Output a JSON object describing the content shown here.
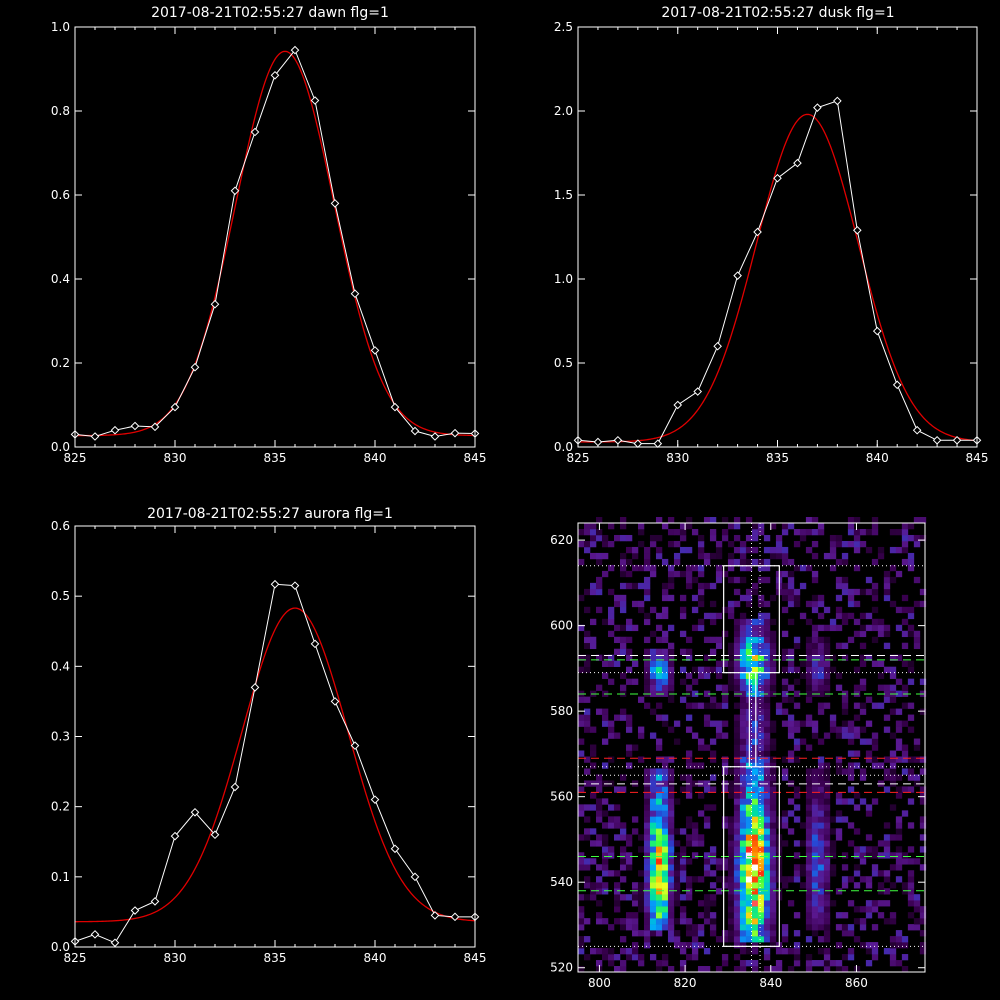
{
  "chart_data": [
    {
      "id": "dawn",
      "type": "line",
      "title": "2017-08-21T02:55:27 dawn flg=1",
      "xlim": [
        825,
        845
      ],
      "ylim": [
        0,
        1.0
      ],
      "xticks": [
        825,
        830,
        835,
        840,
        845
      ],
      "yticks": [
        0.0,
        0.2,
        0.4,
        0.6,
        0.8,
        1.0
      ],
      "xtick_labels": [
        "825",
        "830",
        "835",
        "840",
        "845"
      ],
      "ytick_labels": [
        "0.0",
        "0.2",
        "0.4",
        "0.6",
        "0.8",
        "1.0"
      ],
      "series": [
        {
          "kind": "measured",
          "color": "#ffffff",
          "marker": "diamond",
          "x": [
            825,
            826,
            827,
            828,
            829,
            830,
            831,
            832,
            833,
            834,
            835,
            836,
            837,
            838,
            839,
            840,
            841,
            842,
            843,
            844,
            845
          ],
          "y": [
            0.03,
            0.025,
            0.04,
            0.05,
            0.048,
            0.095,
            0.19,
            0.34,
            0.61,
            0.75,
            0.885,
            0.945,
            0.825,
            0.58,
            0.365,
            0.23,
            0.095,
            0.038,
            0.025,
            0.033,
            0.032
          ]
        },
        {
          "kind": "fit",
          "color": "#e00000",
          "gaussian": {
            "amp": 0.915,
            "center": 835.5,
            "sigma": 2.45,
            "offset": 0.027
          }
        }
      ]
    },
    {
      "id": "dusk",
      "type": "line",
      "title": "2017-08-21T02:55:27 dusk flg=1",
      "xlim": [
        825,
        845
      ],
      "ylim": [
        0,
        2.5
      ],
      "xticks": [
        825,
        830,
        835,
        840,
        845
      ],
      "yticks": [
        0.0,
        0.5,
        1.0,
        1.5,
        2.0,
        2.5
      ],
      "xtick_labels": [
        "825",
        "830",
        "835",
        "840",
        "845"
      ],
      "ytick_labels": [
        "0.0",
        "0.5",
        "1.0",
        "1.5",
        "2.0",
        "2.5"
      ],
      "series": [
        {
          "kind": "measured",
          "color": "#ffffff",
          "marker": "diamond",
          "x": [
            825,
            826,
            827,
            828,
            829,
            830,
            831,
            832,
            833,
            834,
            835,
            836,
            837,
            838,
            839,
            840,
            841,
            842,
            843,
            844,
            845
          ],
          "y": [
            0.04,
            0.03,
            0.04,
            0.02,
            0.02,
            0.25,
            0.33,
            0.6,
            1.02,
            1.28,
            1.6,
            1.69,
            2.02,
            2.06,
            1.29,
            0.69,
            0.37,
            0.1,
            0.04,
            0.04,
            0.04
          ]
        },
        {
          "kind": "fit",
          "color": "#e00000",
          "gaussian": {
            "amp": 1.95,
            "center": 836.5,
            "sigma": 2.55,
            "offset": 0.03
          }
        }
      ]
    },
    {
      "id": "aurora",
      "type": "line",
      "title": "2017-08-21T02:55:27 aurora flg=1",
      "xlim": [
        825,
        845
      ],
      "ylim": [
        0,
        0.6
      ],
      "xticks": [
        825,
        830,
        835,
        840,
        845
      ],
      "yticks": [
        0.0,
        0.1,
        0.2,
        0.3,
        0.4,
        0.5,
        0.6
      ],
      "xtick_labels": [
        "825",
        "830",
        "835",
        "840",
        "845"
      ],
      "ytick_labels": [
        "0.0",
        "0.1",
        "0.2",
        "0.3",
        "0.4",
        "0.5",
        "0.6"
      ],
      "series": [
        {
          "kind": "measured",
          "color": "#ffffff",
          "marker": "diamond",
          "x": [
            825,
            826,
            827,
            828,
            829,
            830,
            831,
            832,
            833,
            834,
            835,
            836,
            837,
            838,
            839,
            840,
            841,
            842,
            843,
            844,
            845
          ],
          "y": [
            0.008,
            0.018,
            0.006,
            0.052,
            0.065,
            0.158,
            0.192,
            0.16,
            0.228,
            0.37,
            0.517,
            0.515,
            0.432,
            0.35,
            0.287,
            0.21,
            0.14,
            0.1,
            0.045,
            0.043,
            0.043
          ]
        },
        {
          "kind": "fit",
          "color": "#e00000",
          "gaussian": {
            "amp": 0.447,
            "center": 836.0,
            "sigma": 2.65,
            "offset": 0.036
          }
        }
      ]
    },
    {
      "id": "spectrogram",
      "type": "heatmap",
      "title": "",
      "xlim": [
        795,
        876
      ],
      "ylim": [
        519,
        624
      ],
      "xticks": [
        800,
        820,
        840,
        860
      ],
      "yticks": [
        520,
        540,
        560,
        580,
        600,
        620
      ],
      "xtick_labels": [
        "800",
        "820",
        "840",
        "860"
      ],
      "ytick_labels": [
        "520",
        "540",
        "560",
        "580",
        "600",
        "620"
      ],
      "colormap": [
        "#000000",
        "#3a0050",
        "#5a1890",
        "#2a40d0",
        "#00a8ff",
        "#00e0a0",
        "#40ff40",
        "#f0ff20",
        "#ff8000",
        "#ff1010",
        "#ffffff"
      ],
      "emission_columns": [
        {
          "x": 814,
          "width": 6,
          "segments": [
            {
              "y0": 530,
              "y1": 566,
              "peak": 0.85,
              "peak_y": 543
            },
            {
              "y0": 584,
              "y1": 594,
              "peak": 0.55,
              "peak_y": 590
            }
          ]
        },
        {
          "x": 836,
          "width": 8,
          "segments": [
            {
              "y0": 527,
              "y1": 568,
              "peak": 1.0,
              "peak_y": 543
            },
            {
              "y0": 568,
              "y1": 584,
              "peak": 0.35,
              "peak_y": 575
            },
            {
              "y0": 584,
              "y1": 600,
              "peak": 0.7,
              "peak_y": 591
            }
          ]
        },
        {
          "x": 851,
          "width": 6,
          "segments": [
            {
              "y0": 530,
              "y1": 566,
              "peak": 0.35,
              "peak_y": 545
            },
            {
              "y0": 584,
              "y1": 596,
              "peak": 0.3,
              "peak_y": 590
            }
          ]
        }
      ],
      "boxes": [
        {
          "x0": 829,
          "x1": 842,
          "y0": 589,
          "y1": 614
        },
        {
          "x0": 829,
          "x1": 842,
          "y0": 525,
          "y1": 567
        }
      ],
      "connector_x": [
        835,
        836.5
      ],
      "connector_y": [
        567,
        589
      ],
      "vertical_dotted_x": [
        835.5,
        837.5
      ],
      "hlines": [
        {
          "y": 614,
          "color": "#ffffff",
          "style": "dotted"
        },
        {
          "y": 593,
          "color": "#ffffff",
          "style": "dashed"
        },
        {
          "y": 592,
          "color": "#40ff40",
          "style": "dashed"
        },
        {
          "y": 589,
          "color": "#ffffff",
          "style": "dotted"
        },
        {
          "y": 584,
          "color": "#40ff40",
          "style": "dashed"
        },
        {
          "y": 569,
          "color": "#ff2020",
          "style": "dashed"
        },
        {
          "y": 567,
          "color": "#ffffff",
          "style": "dotted"
        },
        {
          "y": 565,
          "color": "#ffffff",
          "style": "dotted"
        },
        {
          "y": 563,
          "color": "#ffffff",
          "style": "dashed"
        },
        {
          "y": 561,
          "color": "#ff2020",
          "style": "dashed"
        },
        {
          "y": 546,
          "color": "#40ff40",
          "style": "dashed"
        },
        {
          "y": 538,
          "color": "#40ff40",
          "style": "dashed"
        },
        {
          "y": 525,
          "color": "#ffffff",
          "style": "dotted"
        }
      ]
    }
  ]
}
